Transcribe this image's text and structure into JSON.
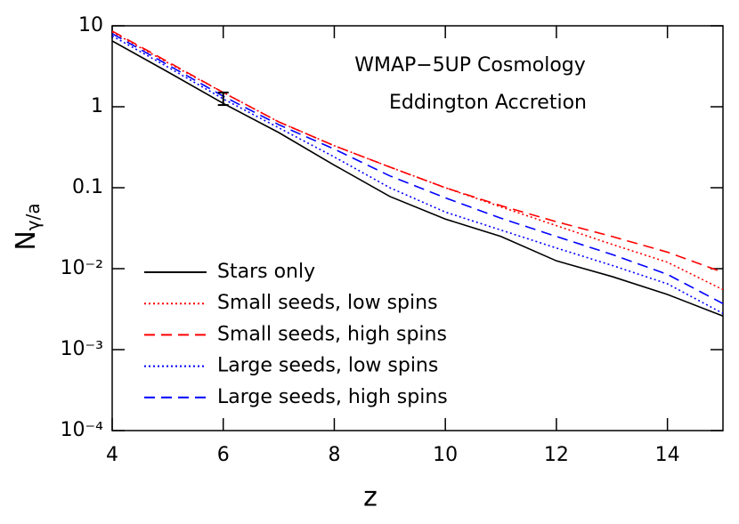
{
  "chart_data": {
    "type": "line",
    "xlabel": "z",
    "ylabel": [
      "N",
      "γ/a"
    ],
    "annotations": [
      "WMAP−5UP Cosmology",
      "Eddington Accretion"
    ],
    "xlim": [
      4,
      15
    ],
    "xticks": [
      4,
      6,
      8,
      10,
      12,
      14
    ],
    "ylim": [
      0.0001,
      10
    ],
    "ylog": true,
    "yticks": [
      10,
      1,
      0.1,
      {
        "value": 0.01,
        "label": "10⁻²"
      },
      {
        "value": 0.001,
        "label": "10⁻³"
      },
      {
        "value": 0.0001,
        "label": "10⁻⁴"
      }
    ],
    "x": [
      4,
      5,
      6,
      7,
      8,
      9,
      10,
      11,
      12,
      13,
      14,
      15
    ],
    "legend": "lower left",
    "series": [
      {
        "name": "Stars only",
        "color": "#000000",
        "dash": "solid",
        "values": [
          6.5,
          2.7,
          1.1,
          0.48,
          0.19,
          0.078,
          0.041,
          0.025,
          0.0125,
          0.008,
          0.0048,
          0.0026
        ]
      },
      {
        "name": "Small seeds, low spins",
        "color": "#ff0000",
        "dash": "dotted",
        "values": [
          8.4,
          3.5,
          1.5,
          0.65,
          0.33,
          0.18,
          0.1,
          0.058,
          0.034,
          0.02,
          0.012,
          0.0055
        ]
      },
      {
        "name": "Small seeds, high spins",
        "color": "#ff0000",
        "dash": "dashed",
        "values": [
          8.6,
          3.6,
          1.5,
          0.65,
          0.33,
          0.18,
          0.1,
          0.06,
          0.038,
          0.025,
          0.016,
          0.009
        ]
      },
      {
        "name": "Large seeds, low spins",
        "color": "#0000ff",
        "dash": "dotted",
        "values": [
          7.5,
          3.1,
          1.25,
          0.55,
          0.24,
          0.1,
          0.05,
          0.03,
          0.018,
          0.011,
          0.0065,
          0.0028
        ]
      },
      {
        "name": "Large seeds, high spins",
        "color": "#0000ff",
        "dash": "dashed",
        "values": [
          8,
          3.3,
          1.35,
          0.6,
          0.3,
          0.14,
          0.075,
          0.042,
          0.025,
          0.015,
          0.0085,
          0.0037
        ]
      }
    ],
    "errorbar": {
      "x": 6,
      "low": 1.05,
      "high": 1.5,
      "color": "#000000"
    }
  }
}
